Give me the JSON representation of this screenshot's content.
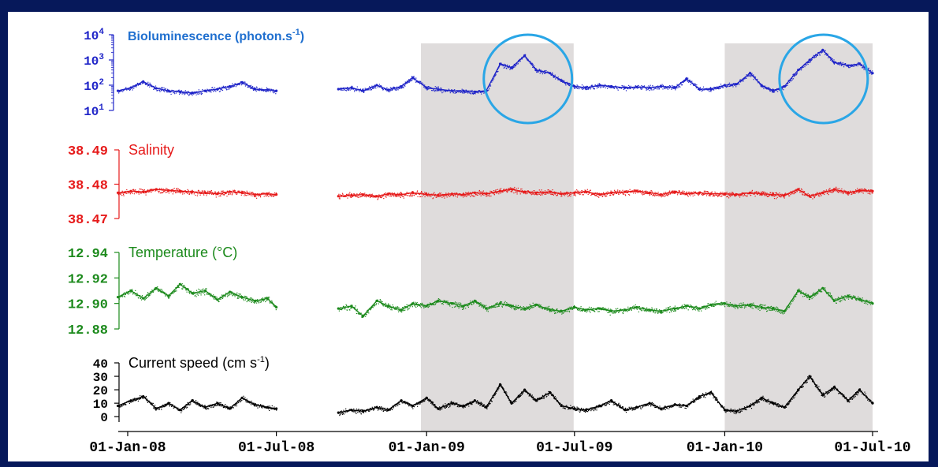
{
  "chart_data": {
    "type": "scatter",
    "subtype": "stacked time series",
    "x_axis": {
      "ticks": [
        "01-Jan-08",
        "01-Jul-08",
        "01-Jan-09",
        "01-Jul-09",
        "01-Jan-10",
        "01-Jul-10"
      ],
      "range": [
        "2007-12-01",
        "2010-07-01"
      ]
    },
    "data_gap": [
      "2008-07-02",
      "2008-09-15"
    ],
    "shaded_periods": [
      {
        "start": "2008-12-25",
        "end": "2009-06-30"
      },
      {
        "start": "2010-01-01",
        "end": "2010-07-01"
      }
    ],
    "highlight_circles": [
      {
        "date": "2009-05-05",
        "panel": "bioluminescence"
      },
      {
        "date": "2010-05-02",
        "panel": "bioluminescence"
      }
    ],
    "panels": [
      {
        "id": "bioluminescence",
        "label": "Bioluminescence (photon.s",
        "label_sup": "-1",
        "label_end": ")",
        "color": "#1f24c8",
        "label_color": "#1f6fcf",
        "scale": "log",
        "range": [
          10,
          10000
        ],
        "ticks": [
          {
            "value": 10000,
            "base": "10",
            "exp": "4"
          },
          {
            "value": 1000,
            "base": "10",
            "exp": "3"
          },
          {
            "value": 100,
            "base": "10",
            "exp": "2"
          },
          {
            "value": 10,
            "base": "10",
            "exp": "1"
          }
        ],
        "series": [
          {
            "segments": [
              {
                "x": [
                  "2007-12-20",
                  "2008-01-05",
                  "2008-01-20",
                  "2008-02-05",
                  "2008-02-20",
                  "2008-03-05",
                  "2008-03-20",
                  "2008-04-05",
                  "2008-04-20",
                  "2008-05-05",
                  "2008-05-20",
                  "2008-06-05",
                  "2008-06-20",
                  "2008-07-01"
                ],
                "y": [
                  60,
                  80,
                  140,
                  75,
                  60,
                  55,
                  50,
                  60,
                  70,
                  90,
                  130,
                  70,
                  65,
                  60
                ]
              },
              {
                "x": [
                  "2008-09-15",
                  "2008-10-01",
                  "2008-10-15",
                  "2008-11-01",
                  "2008-11-15",
                  "2008-12-01",
                  "2008-12-15",
                  "2009-01-01",
                  "2009-01-15",
                  "2009-02-01",
                  "2009-02-15",
                  "2009-03-01",
                  "2009-03-15",
                  "2009-04-01",
                  "2009-04-15",
                  "2009-05-01",
                  "2009-05-15",
                  "2009-06-01",
                  "2009-06-15",
                  "2009-07-01",
                  "2009-07-15",
                  "2009-08-01",
                  "2009-08-15",
                  "2009-09-01",
                  "2009-09-15",
                  "2009-10-01",
                  "2009-10-15",
                  "2009-11-01",
                  "2009-11-15",
                  "2009-12-01",
                  "2009-12-15",
                  "2010-01-01",
                  "2010-01-15",
                  "2010-02-01",
                  "2010-02-15",
                  "2010-03-01",
                  "2010-03-15",
                  "2010-04-01",
                  "2010-04-15",
                  "2010-05-01",
                  "2010-05-15",
                  "2010-06-01",
                  "2010-06-15",
                  "2010-07-01"
                ],
                "y": [
                  70,
                  80,
                  60,
                  100,
                  65,
                  90,
                  200,
                  80,
                  70,
                  60,
                  60,
                  55,
                  60,
                  700,
                  500,
                  1500,
                  400,
                  300,
                  150,
                  90,
                  80,
                  100,
                  90,
                  80,
                  85,
                  80,
                  90,
                  80,
                  180,
                  70,
                  70,
                  100,
                  110,
                  300,
                  100,
                  60,
                  90,
                  400,
                  1000,
                  2500,
                  800,
                  600,
                  700,
                  300
                ]
              }
            ]
          }
        ]
      },
      {
        "id": "salinity",
        "label": "Salinity",
        "color": "#e61a1a",
        "label_color": "#e61a1a",
        "scale": "linear",
        "range": [
          38.47,
          38.49
        ],
        "ticks": [
          {
            "value": 38.49,
            "label": "38.49"
          },
          {
            "value": 38.48,
            "label": "38.48"
          },
          {
            "value": 38.47,
            "label": "38.47"
          }
        ],
        "series": [
          {
            "segments": [
              {
                "x": [
                  "2007-12-20",
                  "2008-01-05",
                  "2008-01-20",
                  "2008-02-05",
                  "2008-02-20",
                  "2008-03-05",
                  "2008-03-20",
                  "2008-04-05",
                  "2008-04-20",
                  "2008-05-05",
                  "2008-05-20",
                  "2008-06-05",
                  "2008-06-20",
                  "2008-07-01"
                ],
                "y": [
                  38.4775,
                  38.478,
                  38.4778,
                  38.4785,
                  38.4782,
                  38.478,
                  38.4778,
                  38.4775,
                  38.4772,
                  38.4778,
                  38.4775,
                  38.477,
                  38.4772,
                  38.477
                ]
              },
              {
                "x": [
                  "2008-09-15",
                  "2008-10-01",
                  "2008-10-15",
                  "2008-11-01",
                  "2008-11-15",
                  "2008-12-01",
                  "2008-12-15",
                  "2009-01-01",
                  "2009-01-15",
                  "2009-02-01",
                  "2009-02-15",
                  "2009-03-01",
                  "2009-03-15",
                  "2009-04-01",
                  "2009-04-15",
                  "2009-05-01",
                  "2009-05-15",
                  "2009-06-01",
                  "2009-06-15",
                  "2009-07-01",
                  "2009-07-15",
                  "2009-08-01",
                  "2009-08-15",
                  "2009-09-01",
                  "2009-09-15",
                  "2009-10-01",
                  "2009-10-15",
                  "2009-11-01",
                  "2009-11-15",
                  "2009-12-01",
                  "2009-12-15",
                  "2010-01-01",
                  "2010-01-15",
                  "2010-02-01",
                  "2010-02-15",
                  "2010-03-01",
                  "2010-03-15",
                  "2010-04-01",
                  "2010-04-15",
                  "2010-05-01",
                  "2010-05-15",
                  "2010-06-01",
                  "2010-06-15",
                  "2010-07-01"
                ],
                "y": [
                  38.4765,
                  38.4768,
                  38.477,
                  38.4765,
                  38.4772,
                  38.477,
                  38.4775,
                  38.477,
                  38.4768,
                  38.4772,
                  38.477,
                  38.4775,
                  38.4772,
                  38.478,
                  38.4785,
                  38.4778,
                  38.4775,
                  38.4778,
                  38.4772,
                  38.4775,
                  38.4778,
                  38.477,
                  38.4775,
                  38.4778,
                  38.478,
                  38.4775,
                  38.477,
                  38.4778,
                  38.4772,
                  38.4775,
                  38.4772,
                  38.4772,
                  38.477,
                  38.4775,
                  38.4772,
                  38.477,
                  38.4768,
                  38.4785,
                  38.4765,
                  38.4775,
                  38.4785,
                  38.4775,
                  38.4782,
                  38.478
                ]
              }
            ]
          }
        ]
      },
      {
        "id": "temperature",
        "label": "Temperature (°C)",
        "color": "#1c8a1c",
        "label_color": "#1c8a1c",
        "scale": "linear",
        "range": [
          12.88,
          12.94
        ],
        "ticks": [
          {
            "value": 12.94,
            "label": "12.94"
          },
          {
            "value": 12.92,
            "label": "12.92"
          },
          {
            "value": 12.9,
            "label": "12.90"
          },
          {
            "value": 12.88,
            "label": "12.88"
          }
        ],
        "series": [
          {
            "segments": [
              {
                "x": [
                  "2007-12-20",
                  "2008-01-05",
                  "2008-01-20",
                  "2008-02-05",
                  "2008-02-20",
                  "2008-03-05",
                  "2008-03-20",
                  "2008-04-05",
                  "2008-04-20",
                  "2008-05-05",
                  "2008-05-20",
                  "2008-06-05",
                  "2008-06-20",
                  "2008-07-01"
                ],
                "y": [
                  12.905,
                  12.91,
                  12.904,
                  12.912,
                  12.906,
                  12.915,
                  12.908,
                  12.91,
                  12.903,
                  12.909,
                  12.905,
                  12.902,
                  12.904,
                  12.897
                ]
              },
              {
                "x": [
                  "2008-09-15",
                  "2008-10-01",
                  "2008-10-15",
                  "2008-11-01",
                  "2008-11-15",
                  "2008-12-01",
                  "2008-12-15",
                  "2009-01-01",
                  "2009-01-15",
                  "2009-02-01",
                  "2009-02-15",
                  "2009-03-01",
                  "2009-03-15",
                  "2009-04-01",
                  "2009-04-15",
                  "2009-05-01",
                  "2009-05-15",
                  "2009-06-01",
                  "2009-06-15",
                  "2009-07-01",
                  "2009-07-15",
                  "2009-08-01",
                  "2009-08-15",
                  "2009-09-01",
                  "2009-09-15",
                  "2009-10-01",
                  "2009-10-15",
                  "2009-11-01",
                  "2009-11-15",
                  "2009-12-01",
                  "2009-12-15",
                  "2010-01-01",
                  "2010-01-15",
                  "2010-02-01",
                  "2010-02-15",
                  "2010-03-01",
                  "2010-03-15",
                  "2010-04-01",
                  "2010-04-15",
                  "2010-05-01",
                  "2010-05-15",
                  "2010-06-01",
                  "2010-06-15",
                  "2010-07-01"
                ],
                "y": [
                  12.896,
                  12.898,
                  12.89,
                  12.902,
                  12.898,
                  12.895,
                  12.9,
                  12.898,
                  12.902,
                  12.9,
                  12.898,
                  12.902,
                  12.896,
                  12.9,
                  12.898,
                  12.896,
                  12.899,
                  12.895,
                  12.894,
                  12.897,
                  12.895,
                  12.896,
                  12.894,
                  12.895,
                  12.897,
                  12.895,
                  12.894,
                  12.896,
                  12.898,
                  12.896,
                  12.899,
                  12.9,
                  12.898,
                  12.899,
                  12.897,
                  12.896,
                  12.894,
                  12.91,
                  12.905,
                  12.912,
                  12.902,
                  12.906,
                  12.903,
                  12.9
                ]
              }
            ]
          }
        ]
      },
      {
        "id": "current",
        "label": "Current speed (cm s",
        "label_sup": "-1",
        "label_end": ")",
        "color": "#000000",
        "label_color": "#000000",
        "scale": "linear",
        "range": [
          -4,
          40
        ],
        "ticks": [
          {
            "value": 40,
            "label": "40"
          },
          {
            "value": 30,
            "label": "30"
          },
          {
            "value": 20,
            "label": "20"
          },
          {
            "value": 10,
            "label": "10"
          },
          {
            "value": 0,
            "label": "0"
          }
        ],
        "series": [
          {
            "segments": [
              {
                "x": [
                  "2007-12-20",
                  "2008-01-05",
                  "2008-01-20",
                  "2008-02-05",
                  "2008-02-20",
                  "2008-03-05",
                  "2008-03-20",
                  "2008-04-05",
                  "2008-04-20",
                  "2008-05-05",
                  "2008-05-20",
                  "2008-06-05",
                  "2008-06-20",
                  "2008-07-01"
                ],
                "y": [
                  8,
                  12,
                  15,
                  6,
                  10,
                  5,
                  12,
                  7,
                  10,
                  6,
                  14,
                  9,
                  7,
                  6
                ]
              },
              {
                "x": [
                  "2008-09-15",
                  "2008-10-01",
                  "2008-10-15",
                  "2008-11-01",
                  "2008-11-15",
                  "2008-12-01",
                  "2008-12-15",
                  "2009-01-01",
                  "2009-01-15",
                  "2009-02-01",
                  "2009-02-15",
                  "2009-03-01",
                  "2009-03-15",
                  "2009-04-01",
                  "2009-04-15",
                  "2009-05-01",
                  "2009-05-15",
                  "2009-06-01",
                  "2009-06-15",
                  "2009-07-01",
                  "2009-07-15",
                  "2009-08-01",
                  "2009-08-15",
                  "2009-09-01",
                  "2009-09-15",
                  "2009-10-01",
                  "2009-10-15",
                  "2009-11-01",
                  "2009-11-15",
                  "2009-12-01",
                  "2009-12-15",
                  "2010-01-01",
                  "2010-01-15",
                  "2010-02-01",
                  "2010-02-15",
                  "2010-03-01",
                  "2010-03-15",
                  "2010-04-01",
                  "2010-04-15",
                  "2010-05-01",
                  "2010-05-15",
                  "2010-06-01",
                  "2010-06-15",
                  "2010-07-01"
                ],
                "y": [
                  3,
                  5,
                  4,
                  7,
                  5,
                  12,
                  8,
                  14,
                  6,
                  10,
                  8,
                  12,
                  7,
                  24,
                  10,
                  20,
                  12,
                  18,
                  8,
                  6,
                  5,
                  8,
                  12,
                  5,
                  7,
                  10,
                  6,
                  9,
                  8,
                  15,
                  18,
                  5,
                  4,
                  8,
                  14,
                  10,
                  7,
                  20,
                  30,
                  16,
                  22,
                  12,
                  20,
                  10
                ]
              }
            ]
          }
        ]
      }
    ]
  }
}
